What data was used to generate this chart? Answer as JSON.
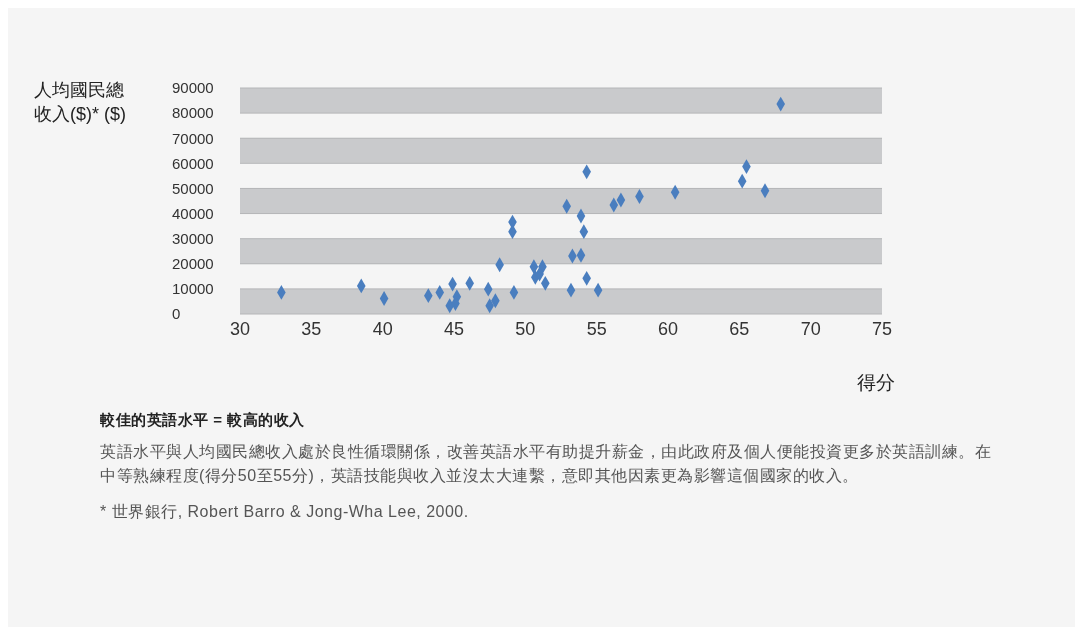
{
  "chart_data": {
    "type": "scatter",
    "ylabel": "人均國民總收入($)* ($)",
    "xlabel": "得分",
    "annotations": [
      "較佳的英語水平 = 較高的收入",
      "英語水平與人均國民總收入處於良性循環關係，改善英語水平有助提升薪金，由此政府及個人便能投資更多於英語訓練。在中等熟練程度(得分50至55分)，英語技能與收入並沒太大連繫，意即其他因素更為影響這個國家的收入。",
      "* 世界銀行, Robert Barro & Jong-Wha Lee, 2000."
    ],
    "x": [
      32.9,
      38.5,
      40.1,
      43.2,
      44.0,
      44.9,
      44.7,
      45.2,
      45.1,
      46.1,
      47.4,
      47.5,
      47.9,
      48.2,
      49.1,
      49.1,
      49.2,
      50.6,
      50.7,
      51.2,
      51.4,
      51.0,
      52.9,
      54.3,
      53.9,
      54.1,
      53.3,
      53.9,
      53.2,
      54.3,
      55.1,
      56.2,
      56.7,
      58.0,
      60.5,
      65.2,
      65.5,
      66.8,
      67.9
    ],
    "values": [
      8600,
      11200,
      6200,
      7300,
      8600,
      11900,
      3300,
      6900,
      4200,
      12200,
      9900,
      3300,
      5300,
      19600,
      36600,
      32800,
      8600,
      18800,
      14600,
      18800,
      12200,
      15900,
      42900,
      56600,
      39000,
      32800,
      23100,
      23400,
      9500,
      14200,
      9500,
      43400,
      45400,
      46800,
      48500,
      52900,
      58700,
      49100,
      83600
    ],
    "color": "#4a7ebf",
    "marker": "diamond",
    "xlim": [
      30,
      75
    ],
    "xticks": [
      30,
      35,
      40,
      45,
      50,
      55,
      60,
      65,
      70,
      75
    ],
    "ylim": [
      0,
      90000
    ],
    "yticks": [
      0,
      10000,
      20000,
      30000,
      40000,
      50000,
      60000,
      70000,
      80000,
      90000
    ],
    "grid": "y"
  }
}
